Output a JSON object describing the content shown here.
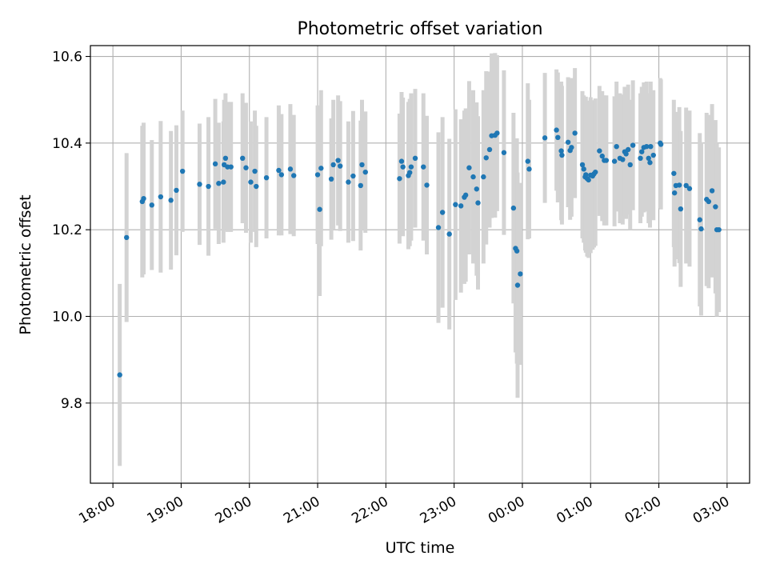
{
  "chart_data": {
    "type": "scatter",
    "title": "Photometric offset variation",
    "xlabel": "UTC time",
    "ylabel": "Photometric offset",
    "x_unit": "hours (UTC, continuous from 18:00 through midnight)",
    "xlim": [
      17.67,
      27.33
    ],
    "ylim": [
      9.615,
      10.625
    ],
    "grid": true,
    "x_ticks": [
      18,
      19,
      20,
      21,
      22,
      23,
      24,
      25,
      26,
      27
    ],
    "x_tick_labels": [
      "18:00",
      "19:00",
      "20:00",
      "21:00",
      "22:00",
      "23:00",
      "00:00",
      "01:00",
      "02:00",
      "03:00"
    ],
    "y_ticks": [
      9.8,
      10.0,
      10.2,
      10.4,
      10.6
    ],
    "y_tick_labels": [
      "9.8",
      "10.0",
      "10.2",
      "10.4",
      "10.6"
    ],
    "colors": {
      "points": "#1f77b4",
      "errorbars": "#d3d3d3",
      "grid": "#b0b0b0"
    },
    "series": [
      {
        "points": [
          [
            18.1,
            9.865,
            0.21
          ],
          [
            18.2,
            10.182,
            0.195
          ],
          [
            18.43,
            10.265,
            0.175
          ],
          [
            18.45,
            10.272,
            0.175
          ],
          [
            18.57,
            10.257,
            0.15
          ],
          [
            18.7,
            10.276,
            0.175
          ],
          [
            18.85,
            10.268,
            0.16
          ],
          [
            18.93,
            10.291,
            0.15
          ],
          [
            19.02,
            10.335,
            0.14
          ],
          [
            19.27,
            10.305,
            0.14
          ],
          [
            19.4,
            10.3,
            0.16
          ],
          [
            19.5,
            10.352,
            0.15
          ],
          [
            19.55,
            10.307,
            0.14
          ],
          [
            19.62,
            10.31,
            0.14
          ],
          [
            19.63,
            10.35,
            0.15
          ],
          [
            19.65,
            10.365,
            0.15
          ],
          [
            19.68,
            10.345,
            0.15
          ],
          [
            19.73,
            10.345,
            0.15
          ],
          [
            19.9,
            10.365,
            0.15
          ],
          [
            19.95,
            10.343,
            0.15
          ],
          [
            20.02,
            10.31,
            0.14
          ],
          [
            20.08,
            10.335,
            0.14
          ],
          [
            20.1,
            10.3,
            0.14
          ],
          [
            20.25,
            10.32,
            0.14
          ],
          [
            20.43,
            10.337,
            0.15
          ],
          [
            20.47,
            10.327,
            0.14
          ],
          [
            20.6,
            10.34,
            0.15
          ],
          [
            20.65,
            10.325,
            0.14
          ],
          [
            21.0,
            10.327,
            0.16
          ],
          [
            21.03,
            10.247,
            0.2
          ],
          [
            21.05,
            10.342,
            0.18
          ],
          [
            21.2,
            10.317,
            0.14
          ],
          [
            21.23,
            10.35,
            0.15
          ],
          [
            21.3,
            10.36,
            0.15
          ],
          [
            21.33,
            10.347,
            0.15
          ],
          [
            21.45,
            10.31,
            0.14
          ],
          [
            21.52,
            10.324,
            0.15
          ],
          [
            21.63,
            10.302,
            0.15
          ],
          [
            21.65,
            10.35,
            0.15
          ],
          [
            21.7,
            10.333,
            0.14
          ],
          [
            22.2,
            10.318,
            0.15
          ],
          [
            22.23,
            10.358,
            0.16
          ],
          [
            22.25,
            10.345,
            0.16
          ],
          [
            22.33,
            10.325,
            0.17
          ],
          [
            22.35,
            10.332,
            0.17
          ],
          [
            22.37,
            10.345,
            0.17
          ],
          [
            22.43,
            10.365,
            0.16
          ],
          [
            22.55,
            10.345,
            0.17
          ],
          [
            22.6,
            10.303,
            0.16
          ],
          [
            22.77,
            10.205,
            0.22
          ],
          [
            22.83,
            10.24,
            0.22
          ],
          [
            22.93,
            10.19,
            0.22
          ],
          [
            23.02,
            10.258,
            0.22
          ],
          [
            23.1,
            10.255,
            0.2
          ],
          [
            23.15,
            10.275,
            0.2
          ],
          [
            23.17,
            10.28,
            0.2
          ],
          [
            23.22,
            10.343,
            0.2
          ],
          [
            23.28,
            10.322,
            0.2
          ],
          [
            23.33,
            10.294,
            0.2
          ],
          [
            23.35,
            10.262,
            0.2
          ],
          [
            23.43,
            10.322,
            0.2
          ],
          [
            23.47,
            10.366,
            0.2
          ],
          [
            23.52,
            10.385,
            0.18
          ],
          [
            23.55,
            10.417,
            0.19
          ],
          [
            23.6,
            10.418,
            0.19
          ],
          [
            23.63,
            10.423,
            0.18
          ],
          [
            23.73,
            10.378,
            0.19
          ],
          [
            23.87,
            10.25,
            0.22
          ],
          [
            23.9,
            10.157,
            0.24
          ],
          [
            23.92,
            10.151,
            0.26
          ],
          [
            23.93,
            10.072,
            0.26
          ],
          [
            23.97,
            10.098,
            0.21
          ],
          [
            24.08,
            10.358,
            0.18
          ],
          [
            24.1,
            10.34,
            0.16
          ],
          [
            24.33,
            10.412,
            0.15
          ],
          [
            24.5,
            10.43,
            0.14
          ],
          [
            24.52,
            10.413,
            0.15
          ],
          [
            24.57,
            10.382,
            0.16
          ],
          [
            24.58,
            10.372,
            0.16
          ],
          [
            24.67,
            10.402,
            0.15
          ],
          [
            24.7,
            10.383,
            0.16
          ],
          [
            24.72,
            10.39,
            0.16
          ],
          [
            24.77,
            10.423,
            0.15
          ],
          [
            24.88,
            10.35,
            0.17
          ],
          [
            24.9,
            10.34,
            0.17
          ],
          [
            24.92,
            10.322,
            0.17
          ],
          [
            24.93,
            10.327,
            0.18
          ],
          [
            24.95,
            10.318,
            0.18
          ],
          [
            24.97,
            10.315,
            0.18
          ],
          [
            25.0,
            10.326,
            0.18
          ],
          [
            25.03,
            10.324,
            0.17
          ],
          [
            25.05,
            10.329,
            0.17
          ],
          [
            25.07,
            10.333,
            0.17
          ],
          [
            25.13,
            10.382,
            0.15
          ],
          [
            25.17,
            10.37,
            0.15
          ],
          [
            25.2,
            10.36,
            0.15
          ],
          [
            25.23,
            10.36,
            0.15
          ],
          [
            25.35,
            10.358,
            0.15
          ],
          [
            25.38,
            10.392,
            0.15
          ],
          [
            25.43,
            10.365,
            0.15
          ],
          [
            25.47,
            10.362,
            0.15
          ],
          [
            25.5,
            10.38,
            0.15
          ],
          [
            25.52,
            10.375,
            0.15
          ],
          [
            25.55,
            10.385,
            0.15
          ],
          [
            25.58,
            10.35,
            0.15
          ],
          [
            25.62,
            10.395,
            0.15
          ],
          [
            25.73,
            10.365,
            0.15
          ],
          [
            25.75,
            10.38,
            0.15
          ],
          [
            25.78,
            10.39,
            0.15
          ],
          [
            25.82,
            10.392,
            0.15
          ],
          [
            25.85,
            10.365,
            0.15
          ],
          [
            25.87,
            10.355,
            0.15
          ],
          [
            25.88,
            10.392,
            0.15
          ],
          [
            25.92,
            10.372,
            0.15
          ],
          [
            26.02,
            10.4,
            0.15
          ],
          [
            26.03,
            10.397,
            0.15
          ],
          [
            26.22,
            10.33,
            0.17
          ],
          [
            26.23,
            10.285,
            0.17
          ],
          [
            26.25,
            10.302,
            0.17
          ],
          [
            26.3,
            10.303,
            0.18
          ],
          [
            26.32,
            10.248,
            0.18
          ],
          [
            26.4,
            10.302,
            0.18
          ],
          [
            26.45,
            10.295,
            0.18
          ],
          [
            26.6,
            10.223,
            0.2
          ],
          [
            26.62,
            10.202,
            0.2
          ],
          [
            26.7,
            10.27,
            0.2
          ],
          [
            26.73,
            10.265,
            0.2
          ],
          [
            26.78,
            10.29,
            0.2
          ],
          [
            26.83,
            10.253,
            0.2
          ],
          [
            26.85,
            10.2,
            0.2
          ],
          [
            26.88,
            10.2,
            0.19
          ]
        ]
      }
    ]
  }
}
